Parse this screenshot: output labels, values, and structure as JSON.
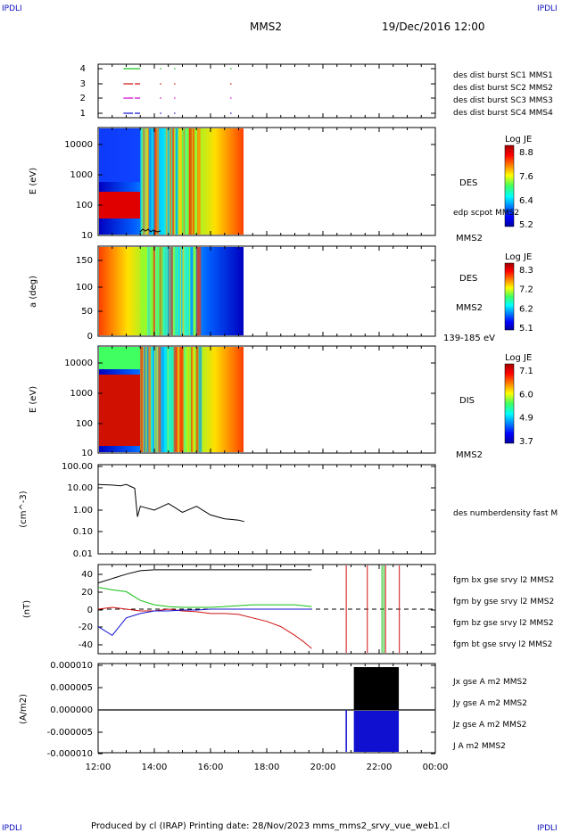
{
  "header": {
    "corner_tl": "IPDLI",
    "corner_tr": "IPDLI",
    "corner_bl": "IPDLI",
    "corner_br": "IPDLI",
    "spacecraft": "MMS2",
    "datetime": "19/Dec/2016 12:00"
  },
  "footer": {
    "produced": "Produced by cl (IRAP)   Printing date: 28/Nov/2023   mms_mms2_srvy_vue_web1.cl"
  },
  "colors": {
    "mms1": "#1010d0",
    "mms2": "#d000d0",
    "mms3": "#d01010",
    "mms4": "#10c010",
    "jx": "#d01010",
    "jy": "#10c010",
    "jz": "#1010d0"
  },
  "chart_data": [
    {
      "id": "burst",
      "type": "scatter",
      "yticks": [
        "4",
        "3",
        "2",
        "1"
      ],
      "legend": [
        "des dist burst SC1 MMS1",
        "des dist burst SC2 MMS2",
        "des dist burst SC3 MMS3",
        "des dist burst SC4 MMS4"
      ],
      "series": [
        {
          "name": "des dist burst SC4 MMS4",
          "y": 4,
          "segments": [
            [
              12.9,
              13.05
            ],
            [
              13.05,
              13.5
            ],
            [
              14.2,
              14.25
            ],
            [
              14.7,
              14.72
            ],
            [
              16.7,
              16.72
            ]
          ]
        },
        {
          "name": "des dist burst SC3 MMS3",
          "y": 3,
          "segments": [
            [
              12.9,
              13.05
            ],
            [
              13.05,
              13.5
            ],
            [
              14.2,
              14.25
            ],
            [
              14.7,
              14.72
            ],
            [
              16.7,
              16.72
            ]
          ]
        },
        {
          "name": "des dist burst SC2 MMS2",
          "y": 2,
          "segments": [
            [
              12.9,
              13.05
            ],
            [
              13.05,
              13.5
            ],
            [
              14.2,
              14.25
            ],
            [
              14.7,
              14.72
            ],
            [
              16.7,
              16.72
            ]
          ]
        },
        {
          "name": "des dist burst SC1 MMS1",
          "y": 1,
          "segments": [
            [
              12.9,
              13.05
            ],
            [
              13.05,
              13.5
            ],
            [
              14.2,
              14.25
            ],
            [
              14.7,
              14.72
            ],
            [
              16.7,
              16.72
            ]
          ]
        }
      ]
    },
    {
      "id": "des_energy",
      "type": "heatmap",
      "ylabel": "E (eV)",
      "yticks": [
        "10000",
        "1000",
        "100",
        "10"
      ],
      "label": "DES",
      "overlay_label": "edp scpot MMS2",
      "sc_label": "MMS2",
      "colorbar": {
        "title": "Log JE",
        "ticks": [
          "8.8",
          "7.6",
          "6.4",
          "5.2"
        ],
        "range": [
          5.2,
          8.8
        ]
      }
    },
    {
      "id": "des_pitch",
      "type": "heatmap",
      "ylabel": "a (deg)",
      "yticks": [
        "150",
        "100",
        "50",
        "0"
      ],
      "label": "DES",
      "sc_label": "MMS2",
      "energy_range": "139-185 eV",
      "colorbar": {
        "title": "Log JE",
        "ticks": [
          "8.3",
          "7.2",
          "6.2",
          "5.1"
        ],
        "range": [
          5.1,
          8.3
        ]
      }
    },
    {
      "id": "dis_energy",
      "type": "heatmap",
      "ylabel": "E (eV)",
      "yticks": [
        "10000",
        "1000",
        "100",
        "10"
      ],
      "label": "DIS",
      "sc_label": "MMS2",
      "colorbar": {
        "title": "Log JE",
        "ticks": [
          "7.1",
          "6.0",
          "4.9",
          "3.7"
        ],
        "range": [
          3.7,
          7.1
        ]
      }
    },
    {
      "id": "density",
      "type": "line",
      "ylabel": "(cm^-3)",
      "yticks": [
        "100.00",
        "10.00",
        "1.00",
        "0.10",
        "0.01"
      ],
      "legend": [
        "des numberdensity fast M"
      ],
      "x": [
        12.0,
        12.5,
        12.8,
        13.0,
        13.3,
        13.4,
        13.5,
        14.0,
        14.5,
        15.0,
        15.5,
        16.0,
        16.5,
        17.0,
        17.2
      ],
      "values": [
        15,
        14,
        13,
        15,
        10,
        0.5,
        1.5,
        1.0,
        2.0,
        0.8,
        1.5,
        0.6,
        0.4,
        0.35,
        0.3
      ]
    },
    {
      "id": "bfield",
      "type": "line",
      "ylabel": "(nT)",
      "yticks": [
        "40",
        "20",
        "0",
        "-20",
        "-40"
      ],
      "ylim": [
        -46,
        46
      ],
      "legend": [
        "fgm bx gse srvy l2 MMS2",
        "fgm by gse srvy l2 MMS2",
        "fgm bz gse srvy l2 MMS2",
        "fgm bt gse srvy l2 MMS2"
      ],
      "x": [
        12.0,
        12.5,
        13.0,
        13.5,
        14.0,
        14.5,
        15.0,
        15.5,
        16.0,
        16.5,
        17.0,
        17.5,
        18.0,
        18.5,
        19.0,
        19.3,
        19.6
      ],
      "series": [
        {
          "name": "fgm bx gse srvy l2 MMS2",
          "values": [
            0,
            2,
            0,
            -2,
            -2,
            0,
            -2,
            -3,
            -5,
            -5,
            -6,
            -10,
            -14,
            -20,
            -30,
            -37,
            -45
          ]
        },
        {
          "name": "fgm by gse srvy l2 MMS2",
          "values": [
            25,
            22,
            20,
            10,
            5,
            3,
            2,
            2,
            2,
            3,
            4,
            5,
            5,
            5,
            5,
            4,
            3
          ]
        },
        {
          "name": "fgm bz gse srvy l2 MMS2",
          "values": [
            -20,
            -30,
            -10,
            -5,
            -2,
            -2,
            -1,
            -1,
            0,
            0,
            0,
            0,
            0,
            0,
            0,
            0,
            0
          ]
        },
        {
          "name": "fgm bt gse srvy l2 MMS2",
          "values": [
            30,
            35,
            40,
            44,
            45,
            45,
            45,
            45,
            45,
            45,
            45,
            45,
            45,
            45,
            45,
            45,
            45
          ]
        }
      ],
      "vlines": [
        20.83,
        21.58,
        22.1,
        22.17,
        22.23,
        22.72
      ]
    },
    {
      "id": "current",
      "type": "line",
      "ylabel": "(A/m2)",
      "yticks": [
        "0.000010",
        "0.000005",
        "0.000000",
        "-0.000005",
        "-0.000010"
      ],
      "ylim": [
        -1e-05,
        1e-05
      ],
      "legend": [
        "Jx gse A m2 MMS2",
        "Jy gse A m2 MMS2",
        "Jz gse A m2 MMS2",
        "J A m2 MMS2"
      ],
      "xticks": [
        "12:00",
        "14:00",
        "16:00",
        "18:00",
        "20:00",
        "22:00",
        "00:00"
      ],
      "xlim": [
        12,
        24
      ]
    }
  ]
}
